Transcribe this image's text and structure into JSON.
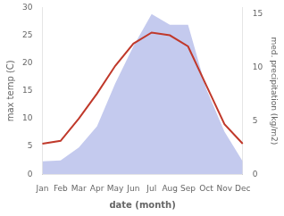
{
  "chart_data": {
    "type": "line",
    "categories": [
      "Jan",
      "Feb",
      "Mar",
      "Apr",
      "May",
      "Jun",
      "Jul",
      "Aug",
      "Sep",
      "Oct",
      "Nov",
      "Dec"
    ],
    "series": [
      {
        "type": "area",
        "color": "#b0b8e8",
        "axis": "y2",
        "values": [
          1.2,
          1.3,
          2.5,
          4.5,
          8.5,
          12.0,
          15.0,
          14.0,
          14.0,
          8.0,
          4.0,
          1.2
        ]
      },
      {
        "type": "line",
        "color": "#c0392b",
        "values": [
          5.5,
          6.0,
          10.0,
          14.5,
          19.5,
          23.5,
          25.5,
          25.0,
          23.0,
          16.0,
          9.0,
          5.5
        ]
      }
    ],
    "xlabel": "date (month)",
    "ylabel": "max temp (C)",
    "y2label": "med. precipitation (kg/m2)",
    "ylim": [
      0,
      30
    ],
    "yticks": [
      0,
      5,
      10,
      15,
      20,
      25,
      30
    ],
    "y2lim": [
      0,
      15.625
    ],
    "y2ticks": [
      0,
      5,
      10,
      15
    ],
    "grid": false
  }
}
